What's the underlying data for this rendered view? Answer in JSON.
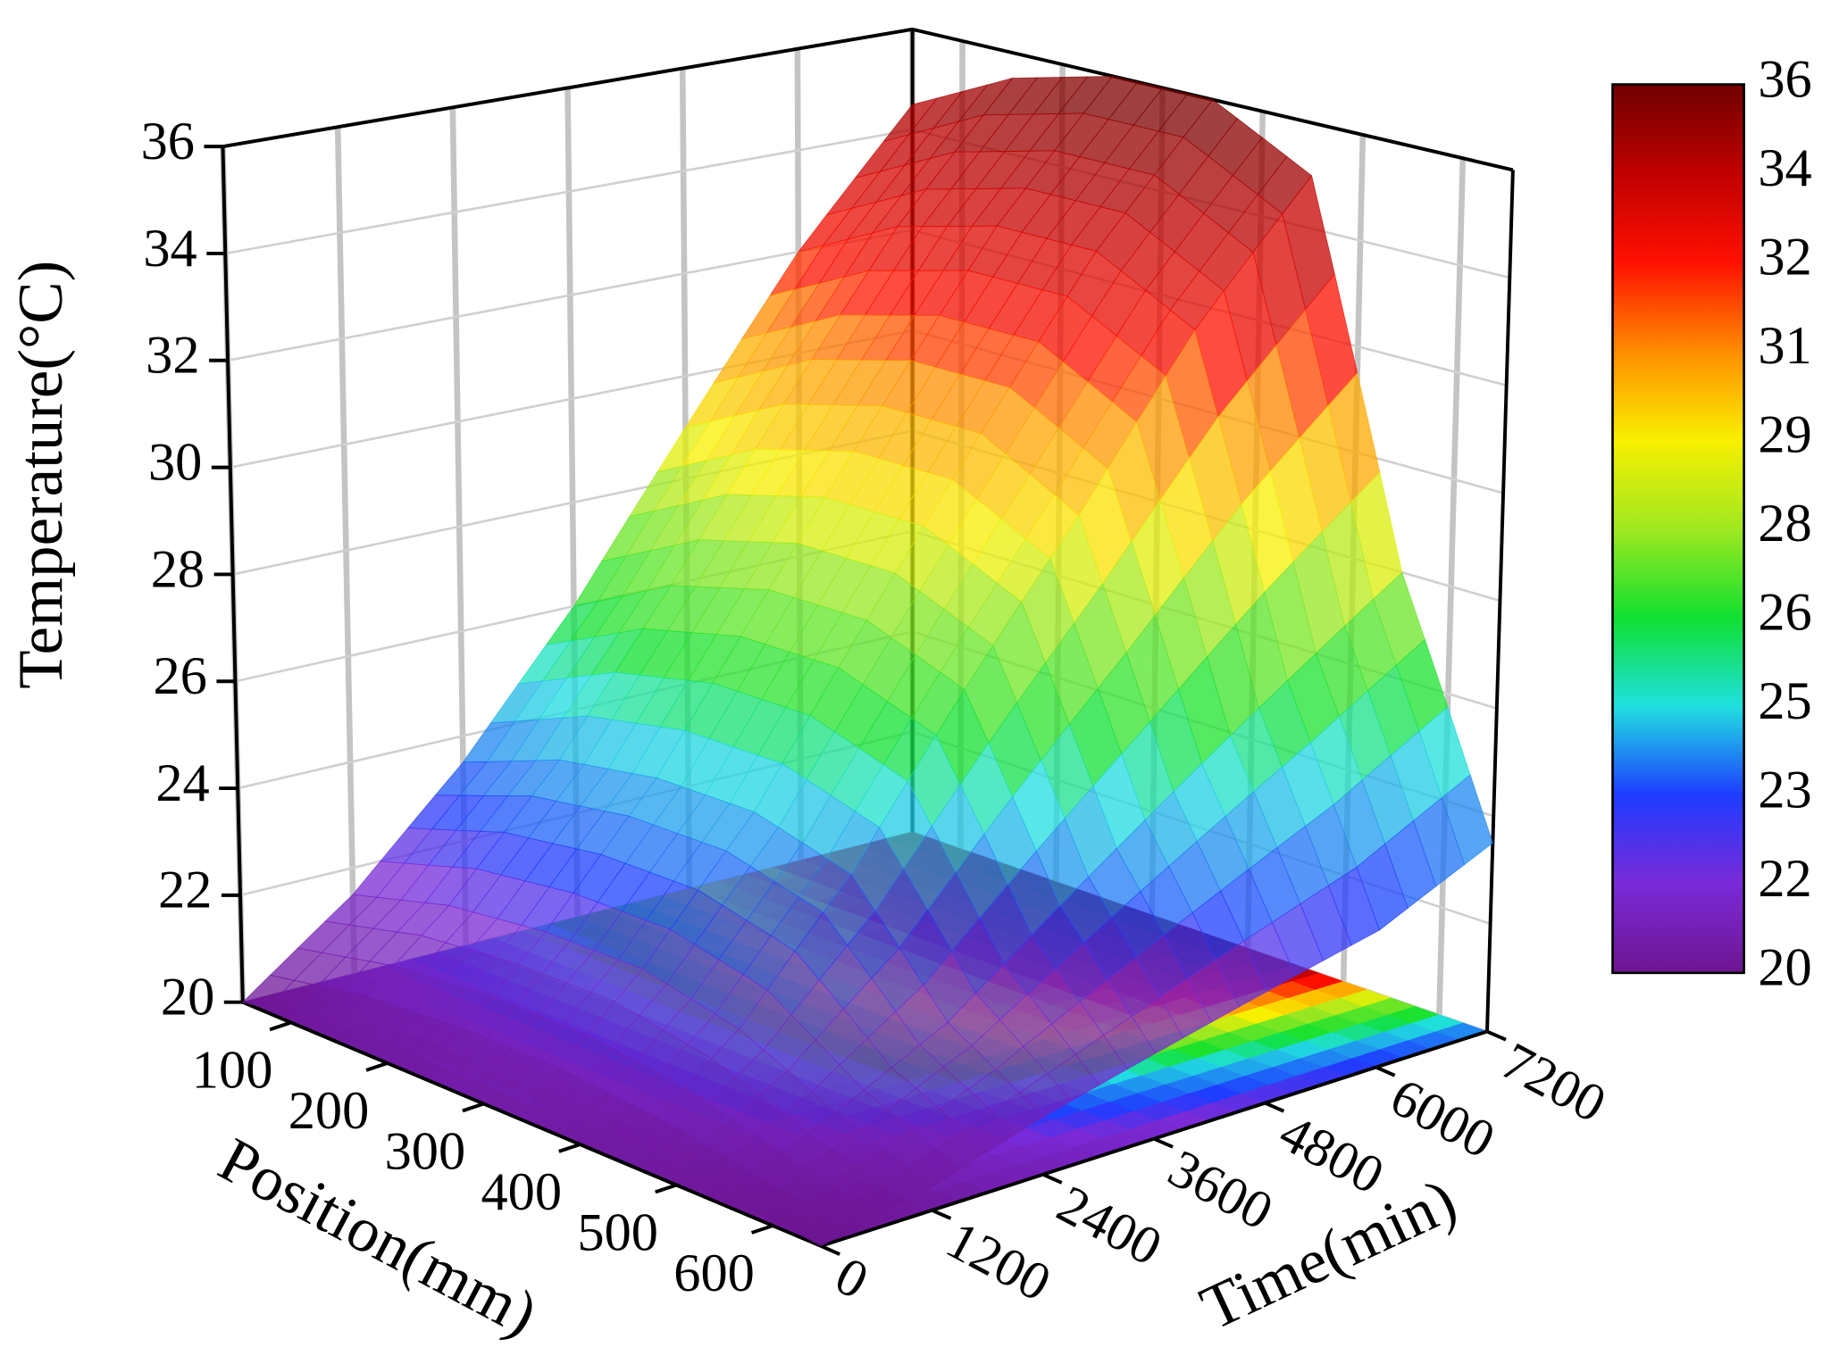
{
  "chart_data": {
    "type": "surface",
    "z_label": "Temperature(°C)",
    "x_label": "Position(mm)",
    "y_label": "Time(min)",
    "x": [
      50,
      150,
      250,
      350,
      450,
      550,
      650
    ],
    "y": [
      0,
      1200,
      2400,
      3600,
      4800,
      6000,
      7200
    ],
    "z": [
      [
        20,
        21.5,
        23.5,
        26,
        29,
        32,
        34.5
      ],
      [
        20.3,
        22,
        24.2,
        27,
        30,
        33,
        35.5
      ],
      [
        20.4,
        22.2,
        24.5,
        27.5,
        30.5,
        33.5,
        36
      ],
      [
        20.4,
        22.2,
        24.5,
        27.5,
        30.5,
        33.5,
        36
      ],
      [
        20.3,
        21.8,
        24,
        26.8,
        29.5,
        32.5,
        35
      ],
      [
        20.2,
        21,
        22,
        23.5,
        25,
        26.5,
        28
      ],
      [
        20,
        20.4,
        21,
        21.5,
        22,
        22.5,
        23.5
      ]
    ],
    "xlim": [
      50,
      650
    ],
    "ylim": [
      0,
      7200
    ],
    "zlim": [
      20,
      36
    ],
    "xticks": [
      100,
      200,
      300,
      400,
      500,
      600
    ],
    "yticks": [
      0,
      1200,
      2400,
      3600,
      4800,
      6000,
      7200
    ],
    "zticks": [
      20,
      22,
      24,
      26,
      28,
      30,
      32,
      34,
      36
    ],
    "grid": true,
    "opacity": 0.75,
    "colorbar": {
      "ticks": [
        20,
        22,
        23,
        25,
        26,
        28,
        29,
        31,
        32,
        34,
        36
      ],
      "colors": [
        "#6e1590",
        "#7a2ad8",
        "#1e3cff",
        "#20e0e0",
        "#10e030",
        "#a0e820",
        "#f8f000",
        "#ff8c00",
        "#ff1000",
        "#c00000",
        "#700000"
      ]
    }
  }
}
